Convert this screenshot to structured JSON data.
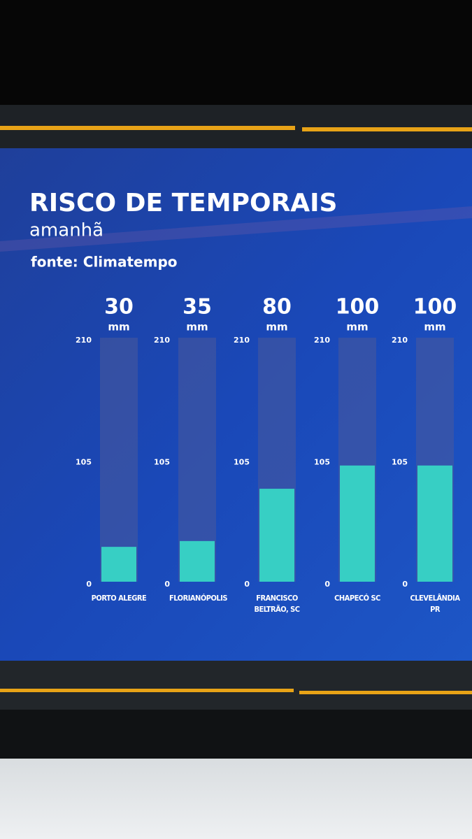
{
  "chart_data": {
    "type": "bar",
    "title": "RISCO DE TEMPORAIS",
    "subtitle": "amanhã",
    "source": "fonte: Climatempo",
    "unit": "mm",
    "categories": [
      "PORTO ALEGRE",
      "FLORIANÓPOLIS",
      "FRANCISCO BELTRÃO, SC",
      "CHAPECÓ SC",
      "CLEVELÂNDIA PR"
    ],
    "values": [
      30,
      35,
      80,
      100,
      100
    ],
    "color": "#37cfc4",
    "ylim": [
      0,
      210
    ],
    "yticks": [
      0,
      105,
      210
    ]
  }
}
